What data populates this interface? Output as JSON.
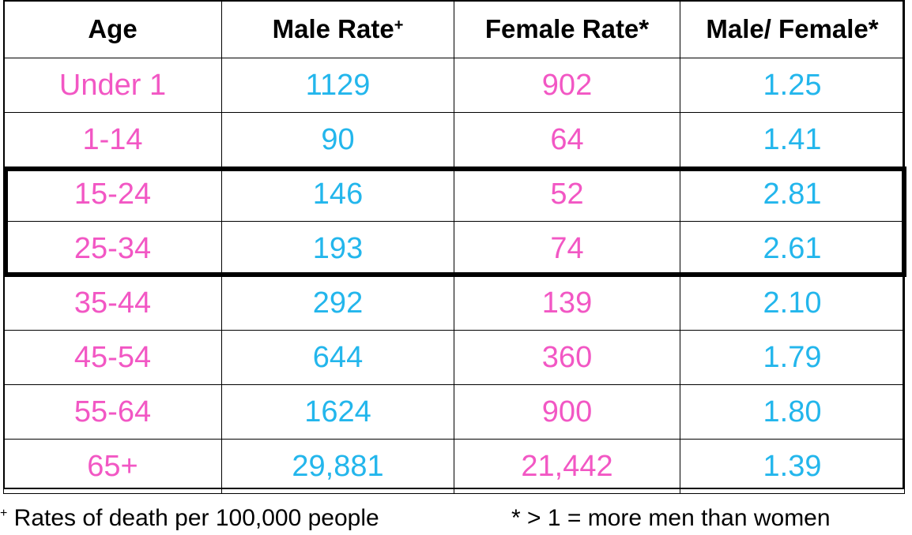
{
  "colors": {
    "age": "#f257c4",
    "male": "#23b6ec",
    "female": "#f257c4",
    "ratio": "#23b6ec",
    "border": "#000000"
  },
  "headers": {
    "age": "Age",
    "male": "Male Rate",
    "male_mark": "+",
    "female": "Female Rate*",
    "ratio": "Male/ Female*"
  },
  "rows": [
    {
      "age": "Under 1",
      "male": "1129",
      "female": "902",
      "ratio": "1.25",
      "highlighted": false
    },
    {
      "age": "1-14",
      "male": "90",
      "female": "64",
      "ratio": "1.41",
      "highlighted": false
    },
    {
      "age": "15-24",
      "male": "146",
      "female": "52",
      "ratio": "2.81",
      "highlighted": true
    },
    {
      "age": "25-34",
      "male": "193",
      "female": "74",
      "ratio": "2.61",
      "highlighted": true
    },
    {
      "age": "35-44",
      "male": "292",
      "female": "139",
      "ratio": "2.10",
      "highlighted": false
    },
    {
      "age": "45-54",
      "male": "644",
      "female": "360",
      "ratio": "1.79",
      "highlighted": false
    },
    {
      "age": "55-64",
      "male": "1624",
      "female": "900",
      "ratio": "1.80",
      "highlighted": false
    },
    {
      "age": "65+",
      "male": "29,881",
      "female": "21,442",
      "ratio": "1.39",
      "highlighted": false
    }
  ],
  "footnotes": {
    "left_mark": "+",
    "left_text": " Rates of death per 100,000 people",
    "right_text": "* > 1 = more men than women"
  }
}
